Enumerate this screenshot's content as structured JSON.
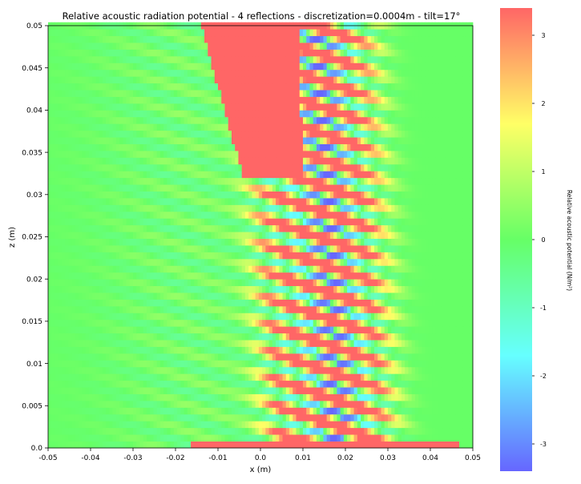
{
  "chart_data": {
    "type": "heatmap",
    "title": "Relative acoustic radiation potential - 4 reflections - discretization=0.0004m - tilt=17°",
    "xlabel": "x (m)",
    "ylabel": "z (m)",
    "xlim": [
      -0.05,
      0.05
    ],
    "ylim": [
      0.0,
      0.05
    ],
    "x_ticks": [
      -0.05,
      -0.04,
      -0.03,
      -0.02,
      -0.01,
      0.0,
      0.01,
      0.02,
      0.03,
      0.04,
      0.05
    ],
    "x_tick_labels": [
      "-0.05",
      "-0.04",
      "-0.03",
      "-0.02",
      "-0.01",
      "0.0",
      "0.01",
      "0.02",
      "0.03",
      "0.04",
      "0.05"
    ],
    "y_ticks": [
      0.0,
      0.005,
      0.01,
      0.015,
      0.02,
      0.025,
      0.03,
      0.035,
      0.04,
      0.045,
      0.05
    ],
    "y_tick_labels": [
      "0.0",
      "0.005",
      "0.01",
      "0.015",
      "0.02",
      "0.025",
      "0.03",
      "0.035",
      "0.04",
      "0.045",
      "0.05"
    ],
    "colorbar": {
      "label": "Relative acoustic potential (N/m²)",
      "range": [
        -3.4,
        3.4
      ],
      "ticks": [
        3,
        2,
        1,
        0,
        -1,
        -2,
        -3
      ],
      "tick_labels": [
        "3",
        "2",
        "1",
        "0",
        "-1",
        "-2",
        "-3"
      ],
      "colors": [
        "#6666ff",
        "#66ffff",
        "#66ff66",
        "#ffff66",
        "#ff6666"
      ]
    },
    "field": {
      "background": 0.0,
      "beam_center_x": 0.015,
      "beam_tilt_deg": 17,
      "beam_halfwidth": 0.016,
      "fringe_period_z": 0.0031,
      "peak": 3.4,
      "saturated_region_z_from": 0.032,
      "left_edge_x_at_top": -0.014,
      "left_edge_x_at_z_0.032": -0.004,
      "grid_step": 0.0008
    },
    "grid": false,
    "legend": "none"
  }
}
